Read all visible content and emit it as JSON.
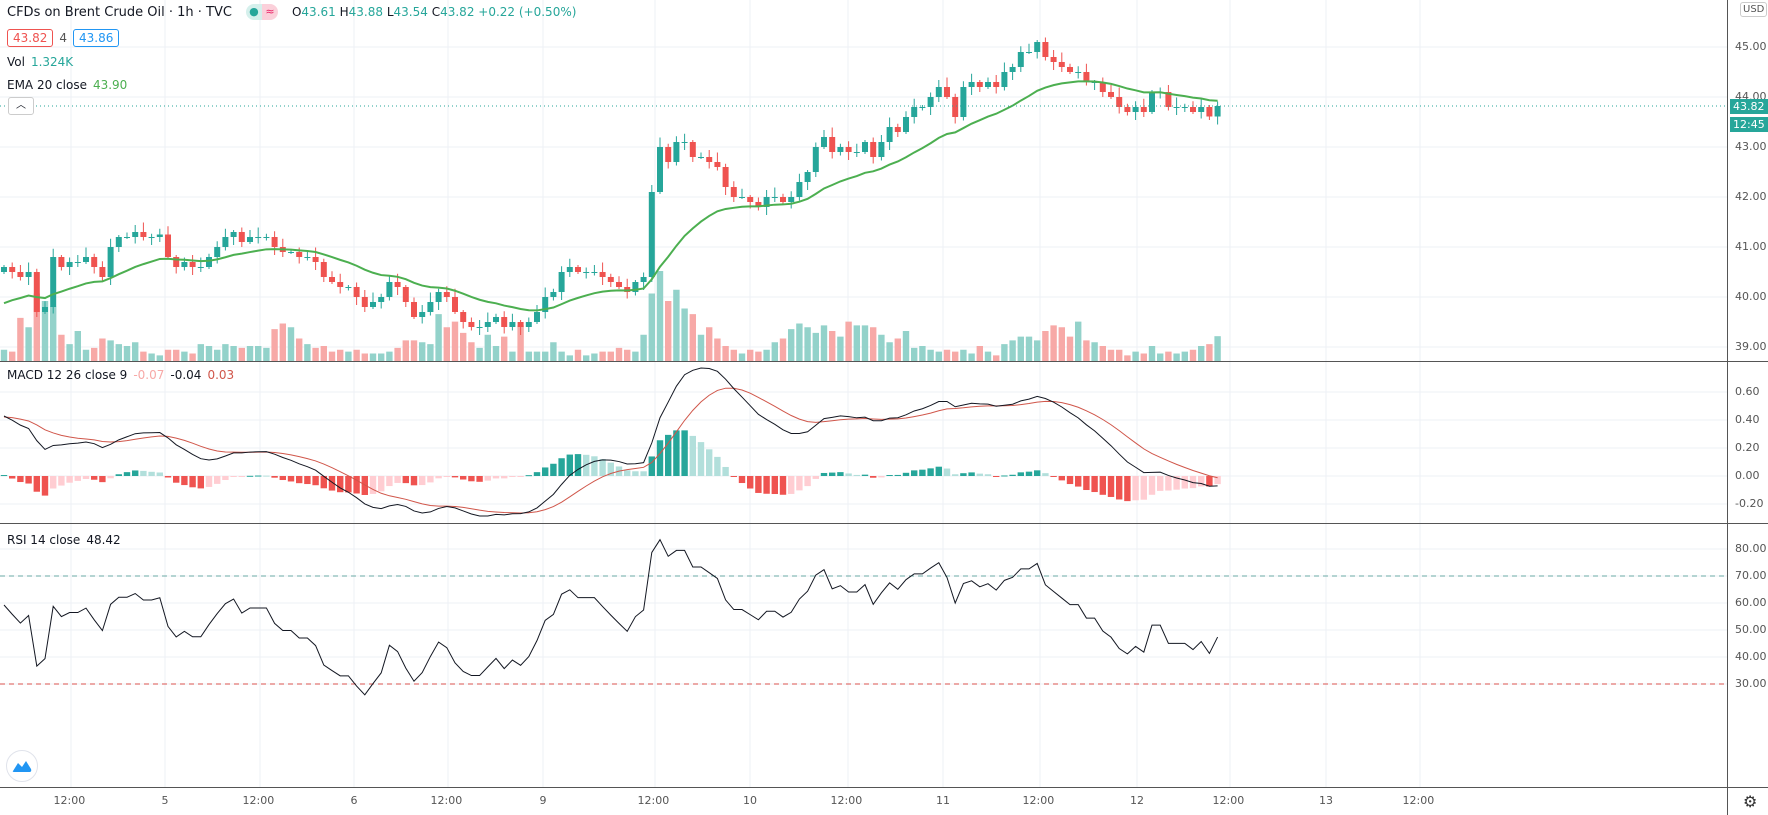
{
  "header": {
    "title": "CFDs on Brent Crude Oil · 1h · TVC",
    "ohlc": {
      "o_label": "O",
      "o": "43.61",
      "h_label": "H",
      "h": "43.88",
      "l_label": "L",
      "l": "43.54",
      "c_label": "C",
      "c": "43.82",
      "change": "+0.22 (+0.50%)"
    },
    "bid": "43.82",
    "spread": "4",
    "ask": "43.86",
    "status_icons": [
      "market-open-dot-icon",
      "delayed-data-icon"
    ]
  },
  "indicators": {
    "vol": {
      "label": "Vol",
      "value": "1.324K"
    },
    "ema": {
      "label": "EMA 20 close",
      "value": "43.90"
    },
    "macd": {
      "label": "MACD 12 26 close 9",
      "hist": "-0.07",
      "macd": "-0.04",
      "signal": "0.03"
    },
    "rsi": {
      "label": "RSI 14 close",
      "value": "48.42"
    }
  },
  "price_axis": {
    "unit": "USD",
    "labels": [
      "45.00",
      "44.00",
      "43.00",
      "42.00",
      "41.00",
      "40.00",
      "39.00"
    ],
    "current_price": "43.82",
    "countdown": "12:45"
  },
  "macd_axis": {
    "labels": [
      "0.60",
      "0.40",
      "0.20",
      "0.00",
      "-0.20"
    ]
  },
  "rsi_axis": {
    "labels": [
      "80.00",
      "70.00",
      "60.00",
      "50.00",
      "40.00",
      "30.00"
    ]
  },
  "time_axis": {
    "labels": [
      "12:00",
      "5",
      "12:00",
      "6",
      "12:00",
      "9",
      "12:00",
      "10",
      "12:00",
      "11",
      "12:00",
      "12",
      "12:00",
      "13",
      "12:00"
    ]
  },
  "colors": {
    "up": "#26a69a",
    "down": "#ef5350",
    "ema": "#4caf50",
    "vol_up": "#93d2ca",
    "vol_down": "#f7a9a7"
  },
  "chart_data": {
    "type": "candlestick",
    "title": "CFDs on Brent Crude Oil · 1h · TVC",
    "ylim": [
      38.8,
      45.5
    ],
    "close": [
      40.6,
      40.5,
      40.4,
      40.5,
      39.7,
      39.8,
      40.8,
      40.6,
      40.7,
      40.7,
      40.8,
      40.6,
      40.4,
      41.0,
      41.2,
      41.2,
      41.3,
      41.2,
      41.2,
      41.25,
      40.8,
      40.6,
      40.7,
      40.6,
      40.6,
      40.8,
      41.0,
      41.2,
      41.3,
      41.1,
      41.2,
      41.2,
      41.2,
      41.0,
      40.9,
      40.9,
      40.8,
      40.8,
      40.7,
      40.4,
      40.3,
      40.2,
      40.2,
      40.0,
      39.8,
      39.9,
      40.0,
      40.3,
      40.2,
      39.9,
      39.6,
      39.7,
      39.9,
      40.1,
      40.0,
      39.7,
      39.5,
      39.4,
      39.4,
      39.5,
      39.6,
      39.4,
      39.5,
      39.4,
      39.5,
      39.7,
      40.0,
      40.1,
      40.5,
      40.6,
      40.5,
      40.5,
      40.5,
      40.4,
      40.3,
      40.2,
      40.1,
      40.3,
      40.4,
      42.1,
      43.0,
      42.7,
      43.1,
      43.1,
      42.8,
      42.8,
      42.7,
      42.6,
      42.2,
      42.0,
      42.0,
      41.9,
      41.8,
      42.0,
      42.0,
      41.9,
      42.0,
      42.3,
      42.5,
      43.0,
      43.2,
      42.9,
      43.0,
      42.9,
      42.9,
      43.1,
      42.8,
      43.1,
      43.4,
      43.3,
      43.6,
      43.8,
      43.8,
      44.0,
      44.2,
      44.0,
      43.6,
      44.2,
      44.3,
      44.2,
      44.3,
      44.2,
      44.5,
      44.6,
      44.9,
      44.9,
      45.1,
      44.8,
      44.7,
      44.6,
      44.5,
      44.5,
      44.3,
      44.3,
      44.1,
      44.0,
      43.8,
      43.7,
      43.8,
      43.7,
      44.1,
      44.1,
      43.8,
      43.8,
      43.8,
      43.7,
      43.8,
      43.61,
      43.82
    ],
    "volume_k": [
      0.6,
      0.5,
      2.3,
      1.8,
      3.6,
      3.2,
      2.9,
      1.4,
      0.9,
      1.6,
      0.6,
      0.7,
      1.2,
      1.1,
      0.9,
      0.8,
      1.0,
      0.5,
      0.4,
      0.3,
      0.6,
      0.6,
      0.5,
      0.4,
      0.9,
      0.8,
      0.6,
      0.9,
      0.8,
      0.7,
      0.8,
      0.8,
      0.7,
      1.7,
      2.0,
      1.8,
      1.2,
      0.9,
      0.7,
      0.8,
      0.5,
      0.6,
      0.5,
      0.6,
      0.4,
      0.4,
      0.4,
      0.5,
      0.7,
      1.1,
      1.1,
      1.0,
      0.9,
      2.5,
      1.8,
      2.1,
      1.5,
      1.0,
      0.7,
      1.4,
      0.8,
      1.3,
      0.5,
      1.9,
      0.5,
      0.5,
      0.5,
      1.0,
      0.5,
      0.3,
      0.6,
      0.3,
      0.4,
      0.5,
      0.5,
      0.7,
      0.6,
      0.5,
      1.4,
      3.6,
      4.8,
      3.2,
      3.8,
      2.8,
      2.5,
      1.4,
      1.8,
      1.2,
      0.8,
      0.6,
      0.4,
      0.6,
      0.5,
      0.6,
      1.0,
      1.2,
      1.7,
      2.0,
      1.8,
      1.5,
      1.9,
      1.6,
      1.3,
      2.1,
      1.9,
      1.9,
      1.8,
      1.4,
      1.0,
      1.2,
      1.6,
      0.7,
      0.8,
      0.6,
      0.5,
      0.6,
      0.5,
      0.6,
      0.4,
      0.8,
      0.5,
      0.3,
      0.9,
      1.1,
      1.3,
      1.3,
      1.1,
      1.6,
      1.9,
      1.8,
      1.3,
      2.1,
      1.1,
      1.0,
      0.8,
      0.6,
      0.6,
      0.3,
      0.5,
      0.4,
      0.8,
      0.4,
      0.5,
      0.4,
      0.5,
      0.6,
      0.8,
      0.9,
      1.324
    ]
  }
}
